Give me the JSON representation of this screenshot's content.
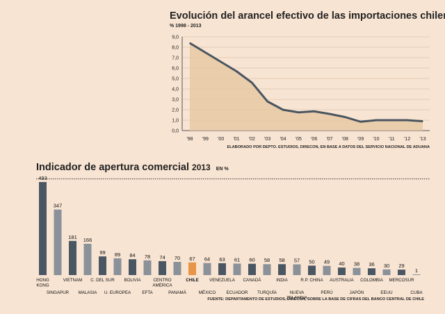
{
  "chart_data": [
    {
      "type": "area",
      "title": "Evolución del arancel efectivo de las importaciones chilenas",
      "subtitle": "%  1998 - 2013",
      "ylim": [
        0,
        9
      ],
      "yticks": [
        "0,0",
        "1,0",
        "2,0",
        "3,0",
        "4,0",
        "5,0",
        "6,0",
        "7,0",
        "8,0",
        "9,0"
      ],
      "categories": [
        "'98",
        "'99",
        "'00",
        "'01",
        "'02",
        "'03",
        "'04",
        "'05",
        "'06",
        "'07",
        "'08",
        "'09",
        "'10",
        "'11",
        "'12",
        "'13"
      ],
      "values": [
        8.4,
        7.5,
        6.6,
        5.7,
        4.6,
        2.8,
        2.0,
        1.75,
        1.85,
        1.6,
        1.3,
        0.85,
        1.0,
        1.0,
        1.0,
        0.9
      ],
      "source": "ELABORADO POR DEPTO. ESTUDIOS, DIRECON, EN BASE A DATOS DEL SERVICIO NACIONAL DE ADUANA"
    },
    {
      "type": "bar",
      "title": "Indicador de apertura comercial",
      "year": "2013",
      "unit": "EN %",
      "categories": [
        "HONG KONG",
        "SINGAPUR",
        "VIETNAM",
        "MALASIA",
        "C. DEL SUR",
        "U. EUROPEA",
        "BOLIVIA",
        "EFTA",
        "CENTRO AMÉRICA",
        "PANAMÁ",
        "CHILE",
        "MÉXICO",
        "VENEZUELA",
        "ECUADOR",
        "CANADÁ",
        "TURQUÍA",
        "INDIA",
        "NUEVA ZELANDIA",
        "R.P. CHINA",
        "PERÚ",
        "AUSTRALIA",
        "JAPÓN",
        "COLOMBIA",
        "EEUU",
        "MERCOSUR",
        "CUBA"
      ],
      "values": [
        493,
        347,
        181,
        166,
        99,
        89,
        84,
        78,
        74,
        70,
        67,
        64,
        63,
        61,
        60,
        58,
        58,
        57,
        50,
        49,
        40,
        38,
        36,
        30,
        29,
        1
      ],
      "highlight": "CHILE",
      "source": "FUENTE: DEPARTAMENTO DE ESTUDIOS, DIRECON, SOBRE LA BASE DE CIFRAS DEL BANCO CENTRAL DE CHILE"
    }
  ],
  "colors": {
    "dark": "#4a5763",
    "light": "#8b9198",
    "highlight": "#e8944a",
    "line": "#4a5560",
    "fill": "#e8c9a4"
  }
}
